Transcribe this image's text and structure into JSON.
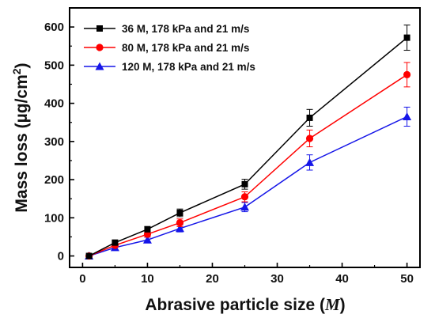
{
  "chart_data": {
    "type": "line",
    "xlabel": "Abrasive particle size (M)",
    "xlabel_parts": {
      "text": "Abrasive particle size (",
      "unit": "M",
      "close": ")"
    },
    "ylabel": "Mass loss (µg/cm²)",
    "ylabel_parts": {
      "text": "Mass loss (µg/cm",
      "sup": "2",
      "close": ")"
    },
    "xlim": [
      -2,
      52
    ],
    "ylim": [
      -30,
      650
    ],
    "xticks": [
      0,
      10,
      20,
      30,
      40,
      50
    ],
    "yticks": [
      0,
      100,
      200,
      300,
      400,
      500,
      600
    ],
    "grid": false,
    "legend_position": "top-left",
    "x": [
      1,
      5,
      10,
      15,
      25,
      35,
      50
    ],
    "series": [
      {
        "name": "36 M, 178 kPa and 21 m/s",
        "color": "#000000",
        "marker": "square",
        "values": [
          0,
          35,
          70,
          113,
          188,
          362,
          572
        ],
        "errors": [
          4,
          5,
          7,
          10,
          13,
          22,
          33
        ]
      },
      {
        "name": "80 M, 178 kPa and 21 m/s",
        "color": "#ff0000",
        "marker": "circle",
        "values": [
          0,
          28,
          57,
          87,
          155,
          308,
          475
        ],
        "errors": [
          4,
          5,
          7,
          10,
          13,
          22,
          32
        ]
      },
      {
        "name": "120 M, 178 kPa and 21 m/s",
        "color": "#1515e8",
        "marker": "triangle",
        "values": [
          0,
          22,
          42,
          72,
          128,
          245,
          365
        ],
        "errors": [
          4,
          5,
          7,
          9,
          12,
          20,
          25
        ]
      }
    ]
  }
}
